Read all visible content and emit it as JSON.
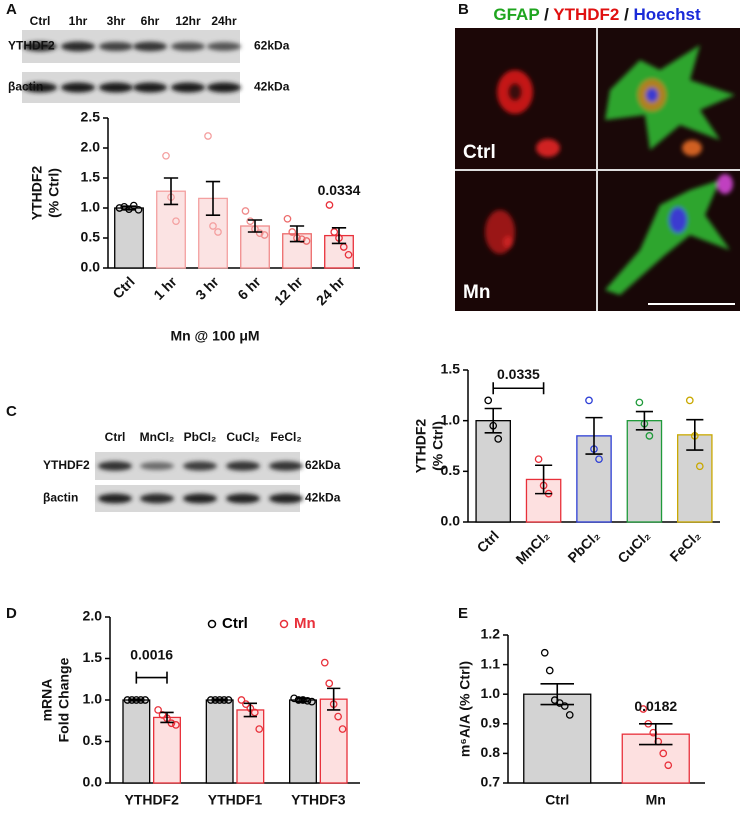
{
  "panel_labels": [
    "A",
    "B",
    "C",
    "D",
    "E"
  ],
  "blots": [
    {
      "lanes": [
        "Ctrl",
        "1hr",
        "3hr",
        "6hr",
        "12hr",
        "24hr"
      ],
      "rows": [
        {
          "protein": "YTHDF2",
          "size": "62kDa"
        },
        {
          "protein": "βactin",
          "size": "42kDa"
        }
      ]
    },
    {
      "lanes": [
        "Ctrl",
        "MnCl₂",
        "PbCl₂",
        "CuCl₂",
        "FeCl₂"
      ],
      "rows": [
        {
          "protein": "YTHDF2",
          "size": "62kDa"
        },
        {
          "protein": "βactin",
          "size": "42kDa"
        }
      ]
    }
  ],
  "micrograph": {
    "title": [
      "GFAP",
      " / ",
      "YTHDF2",
      " / ",
      "Hoechst"
    ],
    "rows": [
      "Ctrl",
      "Mn"
    ]
  },
  "chart_data": [
    {
      "type": "bar",
      "y_label": [
        "YTHDF2",
        "(% Ctrl)"
      ],
      "x_label": "Mn @ 100 μM",
      "categories": [
        "Ctrl",
        "1 hr",
        "3 hr",
        "6 hr",
        "12 hr",
        "24 hr"
      ],
      "values": [
        1.0,
        1.28,
        1.16,
        0.7,
        0.57,
        0.54
      ],
      "errors": [
        0.03,
        0.22,
        0.28,
        0.1,
        0.13,
        0.13
      ],
      "points": [
        [
          1.0,
          1.02,
          0.98,
          1.04,
          0.97
        ],
        [
          1.87,
          1.18,
          0.78
        ],
        [
          2.2,
          0.7,
          0.6
        ],
        [
          0.95,
          0.78,
          0.65,
          0.58,
          0.55
        ],
        [
          0.82,
          0.6,
          0.5,
          0.48,
          0.45
        ],
        [
          1.05,
          0.6,
          0.5,
          0.35,
          0.22
        ]
      ],
      "bar_fills": [
        "#d3d3d3",
        "#fbe3e3",
        "#fbe3e3",
        "#fbe3e3",
        "#fbe3e3",
        "#fbe3e3"
      ],
      "bar_edges": [
        "#000000",
        "#f4a0a0",
        "#f4a0a0",
        "#f08c8c",
        "#ec6a6a",
        "#e8303a"
      ],
      "annotation": "0.0334",
      "ylim": [
        0,
        2.5
      ],
      "yticks": [
        {
          "value": 0,
          "label": "0.0"
        },
        0.5,
        {
          "value": 1,
          "label": "1.0"
        },
        1.5,
        {
          "value": 2,
          "label": "2.0"
        },
        2.5
      ]
    },
    {
      "type": "bar",
      "y_label": [
        "YTHDF2",
        "(% Ctrl)"
      ],
      "categories": [
        "Ctrl",
        "MnCl₂",
        "PbCl₂",
        "CuCl₂",
        "FeCl₂"
      ],
      "values": [
        1.0,
        0.42,
        0.85,
        1.0,
        0.86
      ],
      "errors": [
        0.12,
        0.14,
        0.18,
        0.09,
        0.15
      ],
      "points": [
        [
          1.2,
          0.95,
          0.82
        ],
        [
          0.62,
          0.36,
          0.28
        ],
        [
          1.2,
          0.72,
          0.62
        ],
        [
          1.18,
          0.97,
          0.85
        ],
        [
          1.2,
          0.85,
          0.55
        ]
      ],
      "bar_fills": [
        "#d3d3d3",
        "#fde0e0",
        "#d3d3d3",
        "#d3d3d3",
        "#d3d3d3"
      ],
      "bar_edges": [
        "#000000",
        "#e8303a",
        "#2d3fd6",
        "#1f9a3a",
        "#c9a800"
      ],
      "annotation": "0.0335",
      "ylim": [
        0,
        1.5
      ],
      "yticks": [
        {
          "value": 0,
          "label": "0.0"
        },
        0.5,
        {
          "value": 1,
          "label": "1.0"
        },
        1.5
      ]
    },
    {
      "type": "bar",
      "y_label": [
        "mRNA",
        "Fold Change"
      ],
      "categories": [
        "YTHDF2",
        "YTHDF1",
        "YTHDF3"
      ],
      "series": [
        {
          "name": "Ctrl",
          "fill": "#d3d3d3",
          "color": "#000000",
          "values": [
            1.0,
            1.0,
            1.0
          ],
          "errors": [
            0.01,
            0.01,
            0.02
          ],
          "points": [
            [
              1.0,
              1.0,
              1.0,
              1.0,
              1.0
            ],
            [
              1.0,
              1.0,
              1.0,
              1.0,
              1.0
            ],
            [
              1.02,
              1.0,
              1.0,
              0.99,
              0.98
            ]
          ]
        },
        {
          "name": "Mn",
          "fill": "#fde0e0",
          "color": "#e8303a",
          "values": [
            0.79,
            0.88,
            1.01
          ],
          "errors": [
            0.06,
            0.08,
            0.13
          ],
          "points": [
            [
              0.88,
              0.82,
              0.78,
              0.72,
              0.7
            ],
            [
              1.0,
              0.95,
              0.9,
              0.85,
              0.65
            ],
            [
              1.45,
              1.2,
              0.95,
              0.8,
              0.65
            ]
          ]
        }
      ],
      "annotation": "0.0016",
      "ylim": [
        0,
        2.0
      ],
      "yticks": [
        {
          "value": 0,
          "label": "0.0"
        },
        0.5,
        {
          "value": 1,
          "label": "1.0"
        },
        1.5,
        {
          "value": 2,
          "label": "2.0"
        }
      ]
    },
    {
      "type": "bar",
      "y_label": [
        "m⁶A/A (% Ctrl)"
      ],
      "categories": [
        "Ctrl",
        "Mn"
      ],
      "values": [
        1.0,
        0.865
      ],
      "errors": [
        0.035,
        0.035
      ],
      "points": [
        [
          1.14,
          1.08,
          0.98,
          0.97,
          0.96,
          0.93
        ],
        [
          0.95,
          0.9,
          0.87,
          0.84,
          0.8,
          0.76
        ]
      ],
      "bar_fills": [
        "#d3d3d3",
        "#fde0e0"
      ],
      "bar_edges": [
        "#000000",
        "#e8303a"
      ],
      "annotation": "0.0182",
      "ylim": [
        0.7,
        1.2
      ],
      "yticks": [
        0.7,
        0.8,
        0.9,
        {
          "value": 1,
          "label": "1.0"
        },
        1.1,
        1.2
      ]
    }
  ]
}
